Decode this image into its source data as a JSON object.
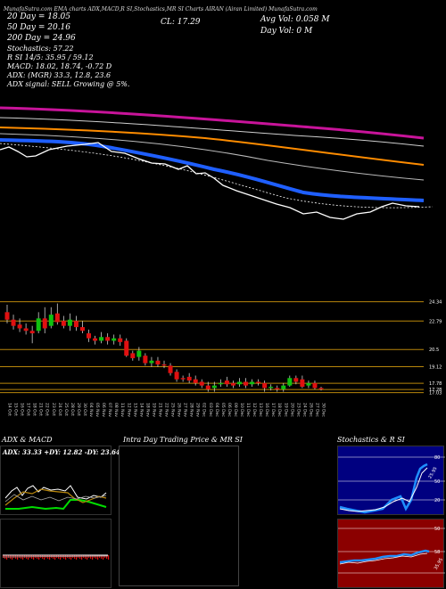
{
  "header": {
    "title_strip": "MunafaSutra.com  EMA charts ADX,MACD,R  SI,Stochastics,MR  SI Charts AIRAN  (Airan Limited) MunafaSutra.com",
    "ema20": "20 Day = 18.05",
    "ema50": "50  Day = 20.16",
    "ema200": "200 Day = 24.96",
    "stoch_line": "Stochastics: 57.22",
    "rsi_line": "R       SI 14/5: 35.95 / 59.12",
    "macd_line": "MACD: 18.02, 18.74, -0.72  D",
    "cl": "CL: 17.29",
    "avg_vol": "Avg Vol: 0.058   M",
    "day_vol": "Day Vol: 0   M",
    "adx_line": "ADX:                      (MGR) 33.3,  12.8,  23.6",
    "adx_signal": "ADX  signal: SELL Growing @ 5%."
  },
  "colors": {
    "ema200": "#c8149a",
    "ema50": "#ff8c00",
    "ema20": "#1f5fff",
    "price": "#ffffff",
    "candle_up": "#10c010",
    "candle_down": "#e01010",
    "level": "#b8860b"
  },
  "price_levels": [
    "24.34",
    "22.79",
    "20.5",
    "19.12",
    "17.78",
    "17.28",
    "17.03"
  ],
  "dates": [
    "14 Oct",
    "15 Oct",
    "16 Oct",
    "17 Oct",
    "18 Oct",
    "21 Oct",
    "22 Oct",
    "23 Oct",
    "24 Oct",
    "25 Oct",
    "28 Oct",
    "29 Oct",
    "30 Oct",
    "04 Nov",
    "05 Nov",
    "06 Nov",
    "07 Nov",
    "08 Nov",
    "11 Nov",
    "12 Nov",
    "13 Nov",
    "14 Nov",
    "18 Nov",
    "19 Nov",
    "21 Nov",
    "22 Nov",
    "25 Nov",
    "26 Nov",
    "27 Nov",
    "28 Nov",
    "29 Nov",
    "02 Dec",
    "03 Dec",
    "04 Dec",
    "05 Dec",
    "06 Dec",
    "09 Dec",
    "10 Dec",
    "11 Dec",
    "12 Dec",
    "13 Dec",
    "16 Dec",
    "17 Dec",
    "18 Dec",
    "19 Dec",
    "20 Dec",
    "23 Dec",
    "24 Dec",
    "26 Dec",
    "27 Dec",
    "30 Dec"
  ],
  "panels": {
    "adx_title": "ADX  & MACD",
    "adx_values": "ADX: 33.33  +DY: 12.82  -DY: 23.64",
    "intraday_title": "Intra  Day Trading Price  & MR                      SI",
    "stoch_title": "Stochastics & R                SI",
    "stoch_labels": [
      "80",
      "25.95",
      "50",
      "20"
    ],
    "rsi_labels": [
      "50",
      "58",
      "35.95"
    ]
  },
  "chart_data": {
    "type": "candlestick",
    "title": "AIRAN (Airan Limited)",
    "candles": [
      {
        "o": 23.5,
        "c": 22.9,
        "h": 24.1,
        "l": 22.6
      },
      {
        "o": 22.9,
        "c": 22.4,
        "h": 23.3,
        "l": 22.1
      },
      {
        "o": 22.5,
        "c": 22.2,
        "h": 23.0,
        "l": 21.9
      },
      {
        "o": 22.2,
        "c": 22.0,
        "h": 22.6,
        "l": 21.7
      },
      {
        "o": 22.0,
        "c": 21.8,
        "h": 22.4,
        "l": 21.0
      },
      {
        "o": 22.0,
        "c": 23.0,
        "h": 23.5,
        "l": 21.8
      },
      {
        "o": 23.0,
        "c": 22.2,
        "h": 23.9,
        "l": 21.8
      },
      {
        "o": 22.4,
        "c": 23.3,
        "h": 23.9,
        "l": 22.2
      },
      {
        "o": 23.4,
        "c": 22.7,
        "h": 24.2,
        "l": 22.5
      },
      {
        "o": 22.8,
        "c": 22.4,
        "h": 23.2,
        "l": 22.2
      },
      {
        "o": 22.4,
        "c": 22.9,
        "h": 23.4,
        "l": 22.0
      },
      {
        "o": 22.8,
        "c": 22.3,
        "h": 23.2,
        "l": 22.0
      },
      {
        "o": 22.3,
        "c": 22.0,
        "h": 22.8,
        "l": 21.8
      },
      {
        "o": 21.8,
        "c": 21.4,
        "h": 22.1,
        "l": 21.1
      },
      {
        "o": 21.4,
        "c": 21.2,
        "h": 21.6,
        "l": 20.9
      },
      {
        "o": 21.2,
        "c": 21.5,
        "h": 21.9,
        "l": 21.0
      },
      {
        "o": 21.5,
        "c": 21.2,
        "h": 21.8,
        "l": 20.9
      },
      {
        "o": 21.2,
        "c": 21.4,
        "h": 21.7,
        "l": 20.9
      },
      {
        "o": 21.4,
        "c": 21.1,
        "h": 21.7,
        "l": 20.8
      },
      {
        "o": 21.2,
        "c": 20.0,
        "h": 21.4,
        "l": 19.9
      },
      {
        "o": 20.2,
        "c": 19.8,
        "h": 20.4,
        "l": 19.6
      },
      {
        "o": 19.9,
        "c": 20.4,
        "h": 20.7,
        "l": 19.6
      },
      {
        "o": 20.0,
        "c": 19.4,
        "h": 20.2,
        "l": 19.2
      },
      {
        "o": 19.4,
        "c": 19.6,
        "h": 19.9,
        "l": 19.1
      },
      {
        "o": 19.6,
        "c": 19.3,
        "h": 19.9,
        "l": 19.1
      },
      {
        "o": 19.3,
        "c": 19.2,
        "h": 19.6,
        "l": 19.0
      },
      {
        "o": 19.2,
        "c": 18.6,
        "h": 19.4,
        "l": 18.4
      },
      {
        "o": 18.7,
        "c": 18.1,
        "h": 18.9,
        "l": 17.9
      },
      {
        "o": 18.2,
        "c": 18.1,
        "h": 18.4,
        "l": 17.9
      },
      {
        "o": 18.3,
        "c": 18.0,
        "h": 18.6,
        "l": 17.8
      },
      {
        "o": 18.1,
        "c": 17.8,
        "h": 18.4,
        "l": 17.6
      },
      {
        "o": 17.9,
        "c": 17.6,
        "h": 18.1,
        "l": 17.4
      },
      {
        "o": 17.6,
        "c": 17.3,
        "h": 17.9,
        "l": 17.1
      },
      {
        "o": 17.4,
        "c": 17.6,
        "h": 17.9,
        "l": 17.1
      },
      {
        "o": 17.7,
        "c": 17.8,
        "h": 18.1,
        "l": 17.5
      },
      {
        "o": 18.0,
        "c": 17.7,
        "h": 18.3,
        "l": 17.5
      },
      {
        "o": 17.8,
        "c": 17.6,
        "h": 18.0,
        "l": 17.4
      },
      {
        "o": 17.7,
        "c": 17.9,
        "h": 18.2,
        "l": 17.5
      },
      {
        "o": 17.9,
        "c": 17.6,
        "h": 18.2,
        "l": 17.4
      },
      {
        "o": 17.7,
        "c": 17.9,
        "h": 18.1,
        "l": 17.5
      },
      {
        "o": 17.9,
        "c": 17.8,
        "h": 18.1,
        "l": 17.6
      },
      {
        "o": 17.8,
        "c": 17.4,
        "h": 18.0,
        "l": 17.1
      },
      {
        "o": 17.4,
        "c": 17.5,
        "h": 17.7,
        "l": 17.2
      },
      {
        "o": 17.4,
        "c": 17.3,
        "h": 17.6,
        "l": 17.1
      },
      {
        "o": 17.3,
        "c": 17.6,
        "h": 17.8,
        "l": 17.1
      },
      {
        "o": 17.6,
        "c": 18.2,
        "h": 18.4,
        "l": 17.5
      },
      {
        "o": 18.2,
        "c": 17.9,
        "h": 18.4,
        "l": 17.7
      },
      {
        "o": 18.1,
        "c": 17.5,
        "h": 18.4,
        "l": 17.4
      },
      {
        "o": 17.6,
        "c": 17.8,
        "h": 18.0,
        "l": 17.4
      },
      {
        "o": 17.8,
        "c": 17.4,
        "h": 18.0,
        "l": 17.3
      },
      {
        "o": 17.4,
        "c": 17.3,
        "h": 17.5,
        "l": 17.2
      }
    ],
    "ylim": [
      16.5,
      24.6
    ]
  }
}
